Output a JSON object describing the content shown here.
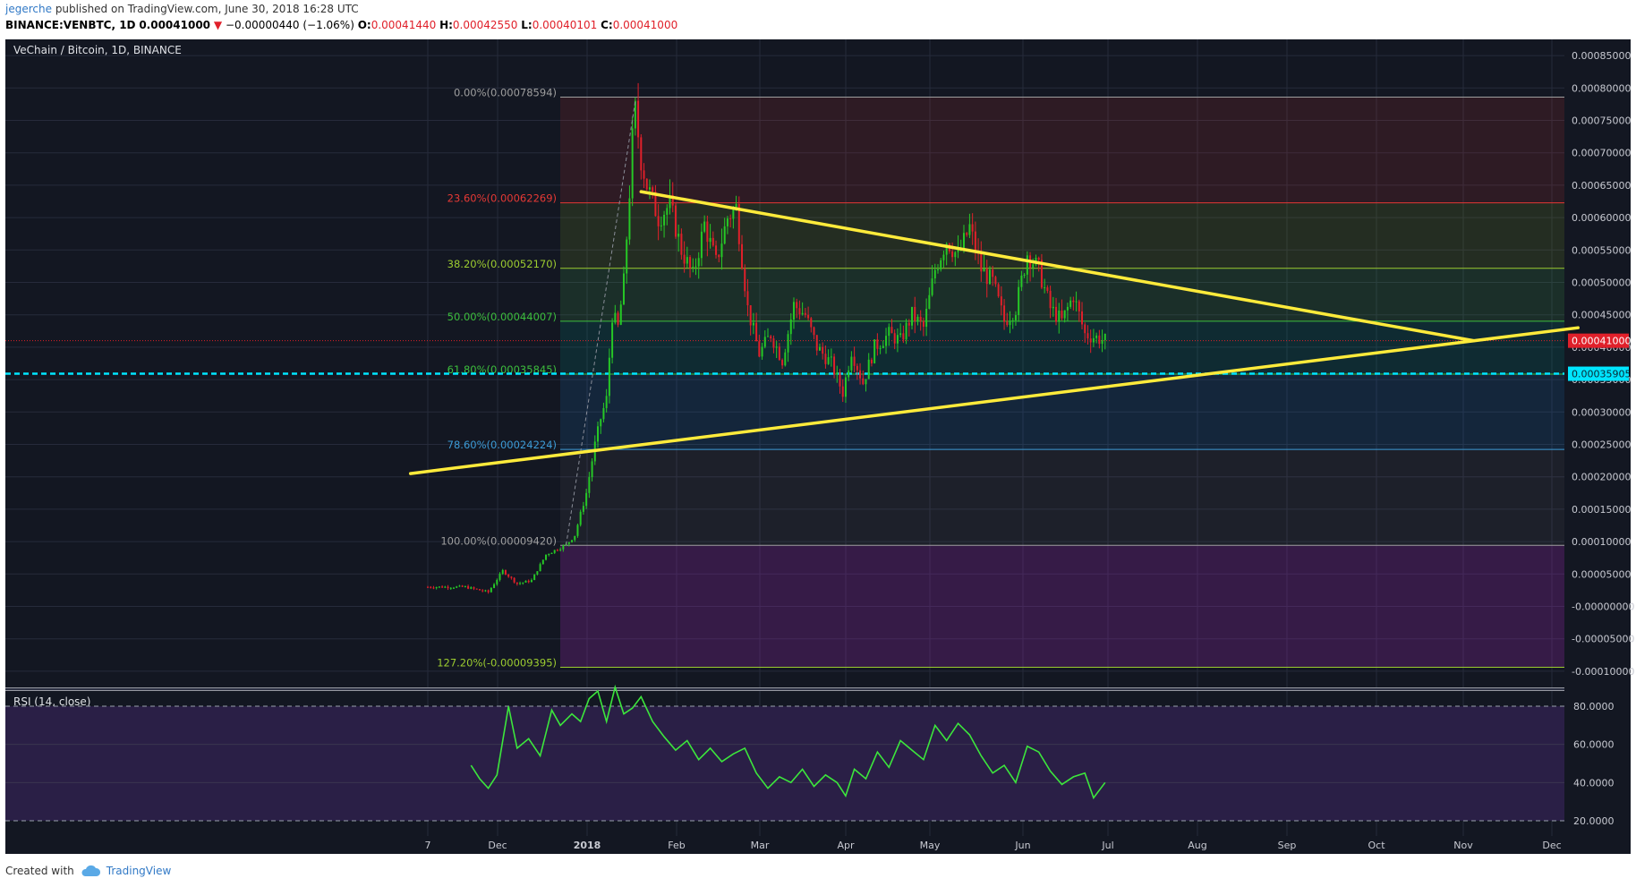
{
  "header": {
    "author": "jegerche",
    "published": "published on TradingView.com, June 30, 2018 16:28 UTC",
    "symbol": "BINANCE:VENBTC, 1D",
    "last": "0.00041000",
    "change": "−0.00000440 (−1.06%)",
    "o_label": "O:",
    "o_val": "0.00041440",
    "h_label": "H:",
    "h_val": "0.00042550",
    "l_label": "L:",
    "l_val": "0.00040101",
    "c_label": "C:",
    "c_val": "0.00041000"
  },
  "chart_title": "VeChain / Bitcoin, 1D, BINANCE",
  "rsi_title": "RSI (14, close)",
  "footer": {
    "created_with": "Created with",
    "brand": "TradingView"
  },
  "colors": {
    "background": "#131722",
    "up": "#26c826",
    "down": "#e0202a",
    "trendline": "#ffeb3b",
    "support": "#00e5ff",
    "rsi_line": "#3ce63c",
    "rsi_band": "#2a1f46"
  },
  "chart_data": [
    {
      "type": "candlestick",
      "title": "VeChain / Bitcoin, 1D, BINANCE",
      "x_ticks": [
        "7",
        "Dec",
        "2018",
        "Feb",
        "Mar",
        "Apr",
        "May",
        "Jun",
        "Jul",
        "Aug",
        "Sep",
        "Oct",
        "Nov",
        "Dec"
      ],
      "y_ticks": [
        "0.00085000",
        "0.00080000",
        "0.00075000",
        "0.00070000",
        "0.00065000",
        "0.00060000",
        "0.00055000",
        "0.00050000",
        "0.00045000",
        "0.00040000",
        "0.00035000",
        "0.00030000",
        "0.00025000",
        "0.00020000",
        "0.00015000",
        "0.00010000",
        "0.00005000",
        "-0.00000000",
        "-0.00005000",
        "-0.00010000"
      ],
      "ylim": [
        -0.000125,
        0.000875
      ],
      "last_price": "0.00041000",
      "support_level": "0.00035905",
      "fibonacci": [
        {
          "label": "0.00%(0.00078594)",
          "value": 0.00078594,
          "color": "#9e9e9e"
        },
        {
          "label": "23.60%(0.00062269)",
          "value": 0.00062269,
          "color": "#e53935"
        },
        {
          "label": "38.20%(0.00052170)",
          "value": 0.0005217,
          "color": "#9ccc30"
        },
        {
          "label": "50.00%(0.00044007)",
          "value": 0.00044007,
          "color": "#3dbf3d"
        },
        {
          "label": "61.80%(0.00035845)",
          "value": 0.00035845,
          "color": "#3dbf3d"
        },
        {
          "label": "78.60%(0.00024224)",
          "value": 0.00024224,
          "color": "#3c9bd6"
        },
        {
          "label": "100.00%(0.00009420)",
          "value": 9.42e-05,
          "color": "#9e9e9e"
        },
        {
          "label": "127.20%(-0.00009395)",
          "value": -9.395e-05,
          "color": "#9ccc30"
        }
      ],
      "fib_zones": [
        {
          "from": 0.00078594,
          "to": 0.00062269,
          "color": "rgba(229,57,53,0.13)"
        },
        {
          "from": 0.00062269,
          "to": 0.0005217,
          "color": "rgba(130,160,40,0.16)"
        },
        {
          "from": 0.0005217,
          "to": 0.00044007,
          "color": "rgba(76,175,80,0.16)"
        },
        {
          "from": 0.00044007,
          "to": 0.00035845,
          "color": "rgba(0,150,136,0.16)"
        },
        {
          "from": 0.00035845,
          "to": 0.00024224,
          "color": "rgba(33,120,190,0.16)"
        },
        {
          "from": 0.00024224,
          "to": 9.42e-05,
          "color": "rgba(120,120,120,0.10)"
        },
        {
          "from": 9.42e-05,
          "to": -9.395e-05,
          "color": "rgba(156,39,176,0.26)"
        }
      ],
      "trendlines": [
        {
          "name": "descending",
          "from": [
            "2018-01-20",
            0.00064
          ],
          "to": [
            "2018-11-04",
            0.00041
          ]
        },
        {
          "name": "ascending",
          "from": [
            "2017-11-01",
            0.000205
          ],
          "to": [
            "2018-12-10",
            0.00043
          ]
        }
      ],
      "price_path": [
        [
          "2017-11-07",
          3e-05
        ],
        [
          "2017-11-20",
          3e-05
        ],
        [
          "2017-11-28",
          2.2e-05
        ],
        [
          "2017-12-03",
          5.5e-05
        ],
        [
          "2017-12-08",
          3.5e-05
        ],
        [
          "2017-12-13",
          4e-05
        ],
        [
          "2017-12-18",
          8e-05
        ],
        [
          "2017-12-25",
          9.5e-05
        ],
        [
          "2017-12-28",
          0.00011
        ],
        [
          "2018-01-01",
          0.000175
        ],
        [
          "2018-01-04",
          0.00025
        ],
        [
          "2018-01-06",
          0.00029
        ],
        [
          "2018-01-08",
          0.00032
        ],
        [
          "2018-01-10",
          0.00045
        ],
        [
          "2018-01-12",
          0.00043
        ],
        [
          "2018-01-14",
          0.0005
        ],
        [
          "2018-01-16",
          0.00064
        ],
        [
          "2018-01-17",
          0.00072
        ],
        [
          "2018-01-18",
          0.000765
        ],
        [
          "2018-01-20",
          0.00069
        ],
        [
          "2018-01-22",
          0.00065
        ],
        [
          "2018-01-26",
          0.0006
        ],
        [
          "2018-01-30",
          0.00062
        ],
        [
          "2018-02-03",
          0.00055
        ],
        [
          "2018-02-07",
          0.00051
        ],
        [
          "2018-02-11",
          0.00059
        ],
        [
          "2018-02-15",
          0.00053
        ],
        [
          "2018-02-19",
          0.0006
        ],
        [
          "2018-02-22",
          0.000615
        ],
        [
          "2018-02-26",
          0.00046
        ],
        [
          "2018-03-02",
          0.00039
        ],
        [
          "2018-03-06",
          0.00042
        ],
        [
          "2018-03-10",
          0.00038
        ],
        [
          "2018-03-14",
          0.000465
        ],
        [
          "2018-03-18",
          0.00045
        ],
        [
          "2018-03-22",
          0.0004
        ],
        [
          "2018-03-27",
          0.000375
        ],
        [
          "2018-03-31",
          0.00033
        ],
        [
          "2018-04-03",
          0.000395
        ],
        [
          "2018-04-07",
          0.000345
        ],
        [
          "2018-04-11",
          0.0004
        ],
        [
          "2018-04-16",
          0.00042
        ],
        [
          "2018-04-20",
          0.00041
        ],
        [
          "2018-04-24",
          0.00045
        ],
        [
          "2018-04-28",
          0.00043
        ],
        [
          "2018-05-02",
          0.00052
        ],
        [
          "2018-05-06",
          0.000565
        ],
        [
          "2018-05-10",
          0.00054
        ],
        [
          "2018-05-14",
          0.000585
        ],
        [
          "2018-05-18",
          0.00052
        ],
        [
          "2018-05-22",
          0.0005
        ],
        [
          "2018-05-26",
          0.00044
        ],
        [
          "2018-05-30",
          0.00046
        ],
        [
          "2018-06-03",
          0.000545
        ],
        [
          "2018-06-07",
          0.00052
        ],
        [
          "2018-06-11",
          0.00046
        ],
        [
          "2018-06-15",
          0.00044
        ],
        [
          "2018-06-19",
          0.00048
        ],
        [
          "2018-06-23",
          0.00042
        ],
        [
          "2018-06-27",
          0.000415
        ],
        [
          "2018-06-30",
          0.00041
        ]
      ]
    },
    {
      "type": "line",
      "title": "RSI (14, close)",
      "y_ticks": [
        "80.0000",
        "60.0000",
        "40.0000",
        "20.0000"
      ],
      "ylim": [
        12,
        88
      ],
      "bands": [
        20,
        80
      ],
      "x": [
        "2017-11-22",
        "2017-11-25",
        "2017-11-28",
        "2017-12-01",
        "2017-12-05",
        "2017-12-08",
        "2017-12-12",
        "2017-12-16",
        "2017-12-20",
        "2017-12-23",
        "2017-12-27",
        "2017-12-30",
        "2018-01-02",
        "2018-01-05",
        "2018-01-08",
        "2018-01-11",
        "2018-01-14",
        "2018-01-17",
        "2018-01-20",
        "2018-01-24",
        "2018-01-28",
        "2018-02-01",
        "2018-02-05",
        "2018-02-09",
        "2018-02-13",
        "2018-02-17",
        "2018-02-21",
        "2018-02-25",
        "2018-03-01",
        "2018-03-05",
        "2018-03-09",
        "2018-03-13",
        "2018-03-17",
        "2018-03-21",
        "2018-03-25",
        "2018-03-29",
        "2018-04-01",
        "2018-04-04",
        "2018-04-08",
        "2018-04-12",
        "2018-04-16",
        "2018-04-20",
        "2018-04-24",
        "2018-04-28",
        "2018-05-02",
        "2018-05-06",
        "2018-05-10",
        "2018-05-14",
        "2018-05-18",
        "2018-05-22",
        "2018-05-26",
        "2018-05-30",
        "2018-06-03",
        "2018-06-07",
        "2018-06-11",
        "2018-06-15",
        "2018-06-19",
        "2018-06-23",
        "2018-06-26",
        "2018-06-30"
      ],
      "values": [
        49,
        42,
        37,
        44,
        80,
        58,
        63,
        54,
        78,
        70,
        76,
        72,
        84,
        88,
        72,
        90,
        76,
        79,
        85,
        72,
        64,
        57,
        62,
        52,
        58,
        51,
        55,
        58,
        45,
        37,
        43,
        40,
        47,
        38,
        44,
        40,
        33,
        47,
        42,
        56,
        48,
        62,
        57,
        52,
        70,
        62,
        71,
        65,
        54,
        45,
        49,
        40,
        59,
        56,
        46,
        39,
        43,
        45,
        32,
        40
      ]
    }
  ]
}
